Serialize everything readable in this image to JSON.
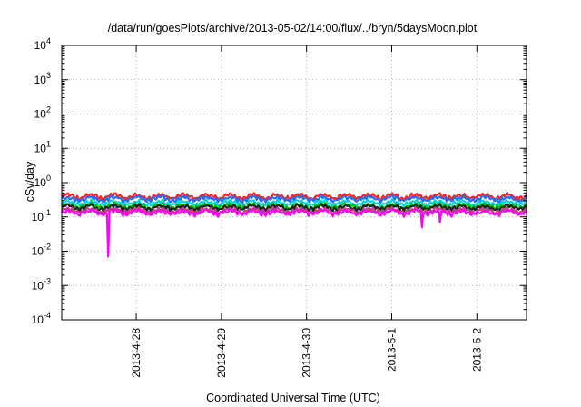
{
  "chart_data": {
    "type": "line",
    "title": "/data/run/goesPlots/archive/2013-05-02/14:00/flux/../bryn/5daysMoon.plot",
    "xlabel": "Coordinated Universal Time (UTC)",
    "ylabel": "cSv/day",
    "yscale": "log",
    "ylim": [
      0.0001,
      10000
    ],
    "y_ticks": [
      {
        "base": "10",
        "exp": "4",
        "value": 10000
      },
      {
        "base": "10",
        "exp": "3",
        "value": 1000
      },
      {
        "base": "10",
        "exp": "2",
        "value": 100
      },
      {
        "base": "10",
        "exp": "1",
        "value": 10
      },
      {
        "base": "10",
        "exp": "0",
        "value": 1
      },
      {
        "base": "10",
        "exp": "-1",
        "value": 0.1
      },
      {
        "base": "10",
        "exp": "-2",
        "value": 0.01
      },
      {
        "base": "10",
        "exp": "-3",
        "value": 0.001
      },
      {
        "base": "10",
        "exp": "-4",
        "value": 0.0001
      }
    ],
    "xlim": [
      "2013-04-27T03:00",
      "2013-05-02T14:00"
    ],
    "x_ticks": [
      "2013-4-28",
      "2013-4-29",
      "2013-4-30",
      "2013-5-1",
      "2013-5-2"
    ],
    "grid": true,
    "series": [
      {
        "color": "#ff2020",
        "level": 0.4
      },
      {
        "color": "#1e6fff",
        "level": 0.34
      },
      {
        "color": "#00d8d8",
        "level": 0.26
      },
      {
        "color": "#00c000",
        "level": 0.21
      },
      {
        "color": "#202020",
        "level": 0.19
      },
      {
        "color": "#c04080",
        "level": 0.155
      },
      {
        "color": "#ff00ff",
        "level": 0.135,
        "dips": [
          {
            "x": "2013-04-27T16:00",
            "y": 0.007
          },
          {
            "x": "2013-05-01T08:30",
            "y": 0.05
          },
          {
            "x": "2013-05-01T13:30",
            "y": 0.07
          }
        ]
      }
    ]
  }
}
